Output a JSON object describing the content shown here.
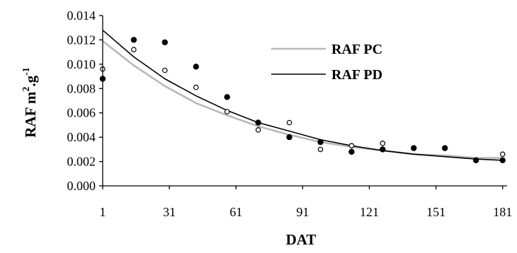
{
  "chart_data": {
    "type": "scatter",
    "xlabel": "DAT",
    "ylabel": {
      "prefix": "RAF m",
      "exp1": "2",
      "mid": ".g",
      "exp2": "-1"
    },
    "xlim": [
      1,
      183
    ],
    "ylim": [
      0,
      0.014
    ],
    "x_ticks": [
      1,
      31,
      61,
      91,
      121,
      151,
      181
    ],
    "y_ticks": [
      "0.000",
      "0.002",
      "0.004",
      "0.006",
      "0.008",
      "0.010",
      "0.012",
      "0.014"
    ],
    "grid": false,
    "legend_position": "top-right",
    "series": [
      {
        "name": "RAF PC",
        "kind": "fit-line",
        "color": "#b8b8b8",
        "x": [
          1,
          15,
          29,
          43,
          57,
          71,
          85,
          99,
          113,
          127,
          141,
          155,
          169,
          181
        ],
        "y": [
          0.0119,
          0.0099,
          0.0082,
          0.0068,
          0.0058,
          0.0049,
          0.0042,
          0.0036,
          0.0032,
          0.0029,
          0.0026,
          0.0025,
          0.0023,
          0.0023
        ]
      },
      {
        "name": "RAF PD",
        "kind": "fit-line",
        "color": "#000000",
        "x": [
          1,
          15,
          29,
          43,
          57,
          71,
          85,
          99,
          113,
          127,
          141,
          155,
          169,
          181
        ],
        "y": [
          0.0128,
          0.0106,
          0.0088,
          0.0074,
          0.0062,
          0.0052,
          0.0045,
          0.0038,
          0.0033,
          0.0029,
          0.0026,
          0.0024,
          0.0022,
          0.0021
        ]
      },
      {
        "kind": "points-open",
        "color": "#000000",
        "x": [
          1,
          15,
          29,
          43,
          57,
          71,
          85,
          99,
          113,
          127,
          141,
          155,
          169,
          181
        ],
        "y": [
          0.0096,
          0.0112,
          0.0095,
          0.0081,
          0.0061,
          0.0046,
          0.0052,
          0.003,
          0.0033,
          0.0035,
          0.0031,
          0.0031,
          0.0021,
          0.0026
        ]
      },
      {
        "kind": "points-filled",
        "color": "#000000",
        "x": [
          1,
          15,
          29,
          43,
          57,
          71,
          85,
          99,
          113,
          127,
          141,
          155,
          169,
          181
        ],
        "y": [
          0.0088,
          0.012,
          0.0118,
          0.0098,
          0.0073,
          0.0052,
          0.004,
          0.0036,
          0.0028,
          0.003,
          0.0031,
          0.0031,
          0.0021,
          0.0021
        ]
      }
    ]
  }
}
